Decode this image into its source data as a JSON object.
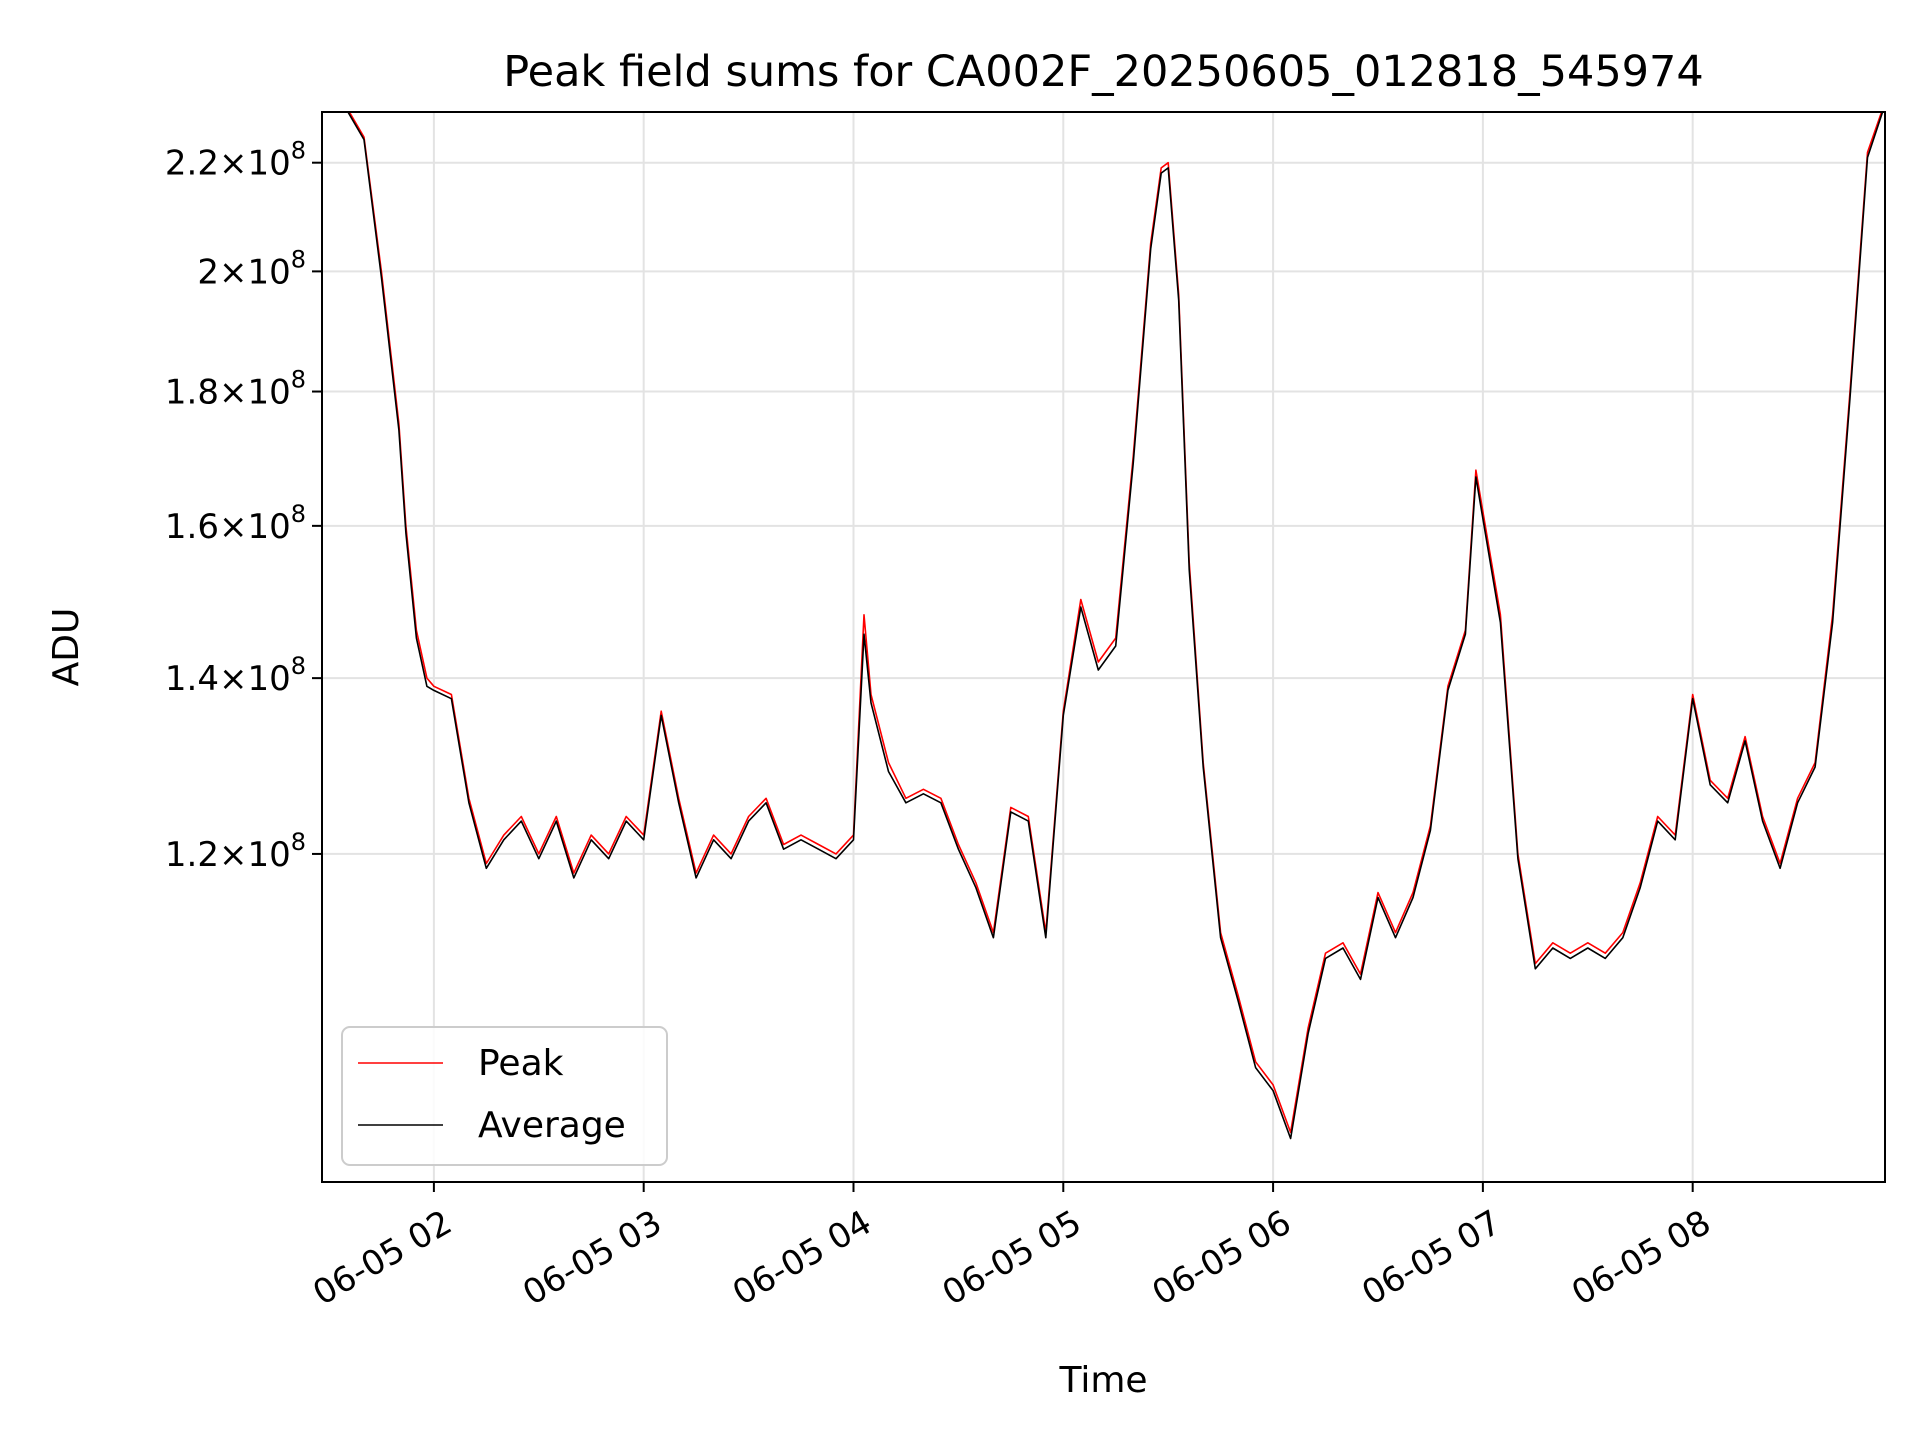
{
  "chart_data": {
    "type": "line",
    "title": "Peak field sums for CA002F_20250605_012818_545974",
    "xlabel": "Time",
    "ylabel": "ADU",
    "y_scale": "log",
    "grid": true,
    "legend_position": "lower-left",
    "xlim": [
      "2025-06-05 01:28",
      "2025-06-05 08:55"
    ],
    "ylim": [
      90000000,
      230000000
    ],
    "x_ticks": [
      "06-05 02",
      "06-05 03",
      "06-05 04",
      "06-05 05",
      "06-05 06",
      "06-05 07",
      "06-05 08"
    ],
    "y_ticks": [
      {
        "value": 120000000,
        "mantissa": "1.2",
        "base": "10",
        "exp": "8"
      },
      {
        "value": 140000000,
        "mantissa": "1.4",
        "base": "10",
        "exp": "8"
      },
      {
        "value": 160000000,
        "mantissa": "1.6",
        "base": "10",
        "exp": "8"
      },
      {
        "value": 180000000,
        "mantissa": "1.8",
        "base": "10",
        "exp": "8"
      },
      {
        "value": 200000000,
        "mantissa": "2",
        "base": "10",
        "exp": "8"
      },
      {
        "value": 220000000,
        "mantissa": "2.2",
        "base": "10",
        "exp": "8"
      }
    ],
    "x": [
      "01:28",
      "01:35",
      "01:40",
      "01:45",
      "01:50",
      "01:52",
      "01:55",
      "01:58",
      "02:00",
      "02:05",
      "02:10",
      "02:15",
      "02:20",
      "02:25",
      "02:30",
      "02:35",
      "02:40",
      "02:45",
      "02:50",
      "02:55",
      "03:00",
      "03:05",
      "03:10",
      "03:15",
      "03:20",
      "03:25",
      "03:30",
      "03:35",
      "03:40",
      "03:45",
      "03:50",
      "03:55",
      "04:00",
      "04:03",
      "04:05",
      "04:10",
      "04:15",
      "04:20",
      "04:25",
      "04:30",
      "04:35",
      "04:40",
      "04:45",
      "04:50",
      "04:55",
      "05:00",
      "05:05",
      "05:10",
      "05:15",
      "05:20",
      "05:25",
      "05:28",
      "05:30",
      "05:33",
      "05:36",
      "05:40",
      "05:45",
      "05:50",
      "05:55",
      "06:00",
      "06:05",
      "06:10",
      "06:15",
      "06:20",
      "06:25",
      "06:30",
      "06:35",
      "06:40",
      "06:45",
      "06:50",
      "06:55",
      "06:58",
      "07:00",
      "07:05",
      "07:10",
      "07:15",
      "07:20",
      "07:25",
      "07:30",
      "07:35",
      "07:40",
      "07:45",
      "07:50",
      "07:55",
      "08:00",
      "08:05",
      "08:10",
      "08:15",
      "08:20",
      "08:25",
      "08:30",
      "08:35",
      "08:40",
      "08:45",
      "08:50",
      "08:55"
    ],
    "series": [
      {
        "name": "Peak",
        "color": "#ff0000",
        "values": [
          232000000,
          231000000,
          225000000,
          200000000,
          175000000,
          160000000,
          146000000,
          140000000,
          139000000,
          138000000,
          126000000,
          119000000,
          122000000,
          124000000,
          120000000,
          124000000,
          118000000,
          122000000,
          120000000,
          124000000,
          122000000,
          136000000,
          126000000,
          118000000,
          122000000,
          120000000,
          124000000,
          126000000,
          121000000,
          122000000,
          121000000,
          120000000,
          122000000,
          148000000,
          138000000,
          130000000,
          126000000,
          127000000,
          126000000,
          121000000,
          117000000,
          112000000,
          125000000,
          124000000,
          112000000,
          136000000,
          150000000,
          142000000,
          145000000,
          170000000,
          205000000,
          219000000,
          220000000,
          196000000,
          155000000,
          130000000,
          112000000,
          106000000,
          100000000,
          98000000,
          94000000,
          103000000,
          110000000,
          111000000,
          108000000,
          116000000,
          112000000,
          116000000,
          123000000,
          139000000,
          146000000,
          168000000,
          162000000,
          148000000,
          120000000,
          109000000,
          111000000,
          110000000,
          111000000,
          110000000,
          112000000,
          117000000,
          124000000,
          122000000,
          138000000,
          128000000,
          126000000,
          133000000,
          124000000,
          119000000,
          126000000,
          130000000,
          148000000,
          180000000,
          222000000,
          232000000
        ]
      },
      {
        "name": "Average",
        "color": "#000000",
        "values": [
          231500000,
          230500000,
          224500000,
          199000000,
          174000000,
          159000000,
          145000000,
          139000000,
          138500000,
          137500000,
          125500000,
          118500000,
          121500000,
          123500000,
          119500000,
          123500000,
          117500000,
          121500000,
          119500000,
          123500000,
          121500000,
          135500000,
          125500000,
          117500000,
          121500000,
          119500000,
          123500000,
          125500000,
          120500000,
          121500000,
          120500000,
          119500000,
          121500000,
          145500000,
          137000000,
          129000000,
          125500000,
          126500000,
          125500000,
          120500000,
          116500000,
          111500000,
          124500000,
          123500000,
          111500000,
          135500000,
          149000000,
          141000000,
          144000000,
          169000000,
          204000000,
          218000000,
          219000000,
          195000000,
          154000000,
          129500000,
          111500000,
          105500000,
          99500000,
          97500000,
          93500000,
          102500000,
          109500000,
          110500000,
          107500000,
          115500000,
          111500000,
          115500000,
          122500000,
          138500000,
          145500000,
          167000000,
          161000000,
          147000000,
          119500000,
          108500000,
          110500000,
          109500000,
          110500000,
          109500000,
          111500000,
          116500000,
          123500000,
          121500000,
          137500000,
          127500000,
          125500000,
          132500000,
          123500000,
          118500000,
          125500000,
          129500000,
          147000000,
          179000000,
          221000000,
          231500000
        ]
      }
    ]
  }
}
